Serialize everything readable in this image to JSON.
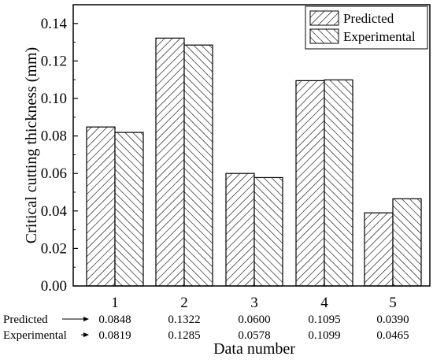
{
  "chart_data": {
    "type": "bar",
    "xlabel": "Data number",
    "ylabel": "Critical cutting thickness (mm)",
    "categories": [
      "1",
      "2",
      "3",
      "4",
      "5"
    ],
    "ylim": [
      0,
      0.15
    ],
    "yticks": [
      "0.00",
      "0.02",
      "0.04",
      "0.06",
      "0.08",
      "0.10",
      "0.12",
      "0.14"
    ],
    "grid": false,
    "legend_position": "top-right",
    "series": [
      {
        "name": "Predicted",
        "values": [
          0.0848,
          0.1322,
          0.06,
          0.1095,
          0.039
        ],
        "hatch": "forward-diagonal"
      },
      {
        "name": "Experimental",
        "values": [
          0.0819,
          0.1285,
          0.0578,
          0.1099,
          0.0465
        ],
        "hatch": "backward-diagonal"
      }
    ],
    "value_table": {
      "rows": [
        {
          "label": "Predicted",
          "values": [
            "0.0848",
            "0.1322",
            "0.0600",
            "0.1095",
            "0.0390"
          ]
        },
        {
          "label": "Experimental",
          "values": [
            "0.0819",
            "0.1285",
            "0.0578",
            "0.1099",
            "0.0465"
          ]
        }
      ]
    },
    "colors": {
      "bar_fill": "#ffffff",
      "bar_stroke": "#000000",
      "hatch": "#000000"
    }
  }
}
